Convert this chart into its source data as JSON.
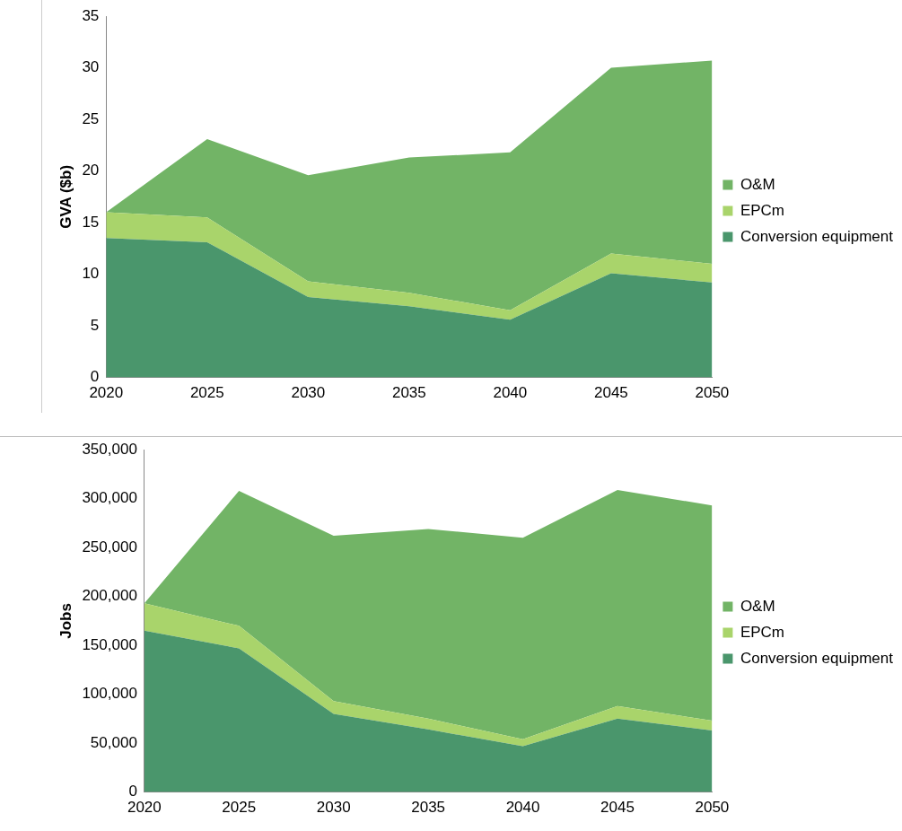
{
  "chart_data": [
    {
      "type": "area",
      "stacked": true,
      "ylabel": "GVA ($b)",
      "categories": [
        "2020",
        "2025",
        "2030",
        "2035",
        "2040",
        "2045",
        "2050"
      ],
      "ylim": [
        0,
        35
      ],
      "yticks": [
        0,
        5,
        10,
        15,
        20,
        25,
        30,
        35
      ],
      "grid": false,
      "legend": "right",
      "series": [
        {
          "name": "Conversion equipment",
          "color": "#4a966c",
          "values": [
            13.5,
            13.1,
            7.8,
            6.9,
            5.6,
            10.1,
            9.2
          ]
        },
        {
          "name": "EPCm",
          "color": "#a9d46b",
          "values": [
            2.5,
            2.4,
            1.5,
            1.3,
            0.9,
            1.9,
            1.8
          ]
        },
        {
          "name": "O&M",
          "color": "#72b466",
          "values": [
            0,
            7.6,
            10.3,
            13.1,
            15.3,
            18,
            19.7
          ]
        }
      ]
    },
    {
      "type": "area",
      "stacked": true,
      "ylabel": "Jobs",
      "categories": [
        "2020",
        "2025",
        "2030",
        "2035",
        "2040",
        "2045",
        "2050"
      ],
      "ylim": [
        0,
        350000
      ],
      "yticks": [
        0,
        {
          "value": 50000,
          "label": "50,000"
        },
        {
          "value": 100000,
          "label": "100,000"
        },
        {
          "value": 150000,
          "label": "150,000"
        },
        {
          "value": 200000,
          "label": "200,000"
        },
        {
          "value": 250000,
          "label": "250,000"
        },
        {
          "value": 300000,
          "label": "300,000"
        },
        {
          "value": 350000,
          "label": "350,000"
        }
      ],
      "grid": false,
      "legend": "right",
      "series": [
        {
          "name": "Conversion equipment",
          "color": "#4a966c",
          "values": [
            165000,
            147000,
            80000,
            64000,
            47000,
            75000,
            63000
          ]
        },
        {
          "name": "EPCm",
          "color": "#a9d46b",
          "values": [
            28000,
            23000,
            13000,
            11000,
            7000,
            13000,
            10000
          ]
        },
        {
          "name": "O&M",
          "color": "#72b466",
          "values": [
            0,
            138000,
            169000,
            194000,
            206000,
            221000,
            220000
          ]
        }
      ]
    }
  ]
}
